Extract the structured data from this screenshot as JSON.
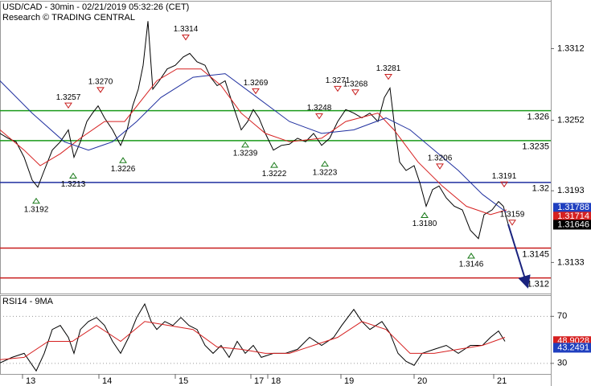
{
  "chart_data": [
    {
      "type": "line",
      "title": "USD/CAD - 30min - 02/21/2019 05:32:26 (CET)",
      "subtitle": "Research © TRADING CENTRAL",
      "xlim": [
        0,
        137
      ],
      "ylim": [
        1.3107,
        1.3352
      ],
      "yticks": [
        1.3312,
        1.3252,
        1.3193,
        1.3133
      ],
      "series": [
        {
          "color": "#000000",
          "x": [
            0,
            2,
            4,
            6,
            8,
            9.4,
            11,
            13,
            15,
            17,
            18.4,
            20,
            21.6,
            23,
            24.4,
            26,
            28,
            30,
            31.6,
            33,
            34.4,
            35.6,
            36.8,
            38,
            39.6,
            41.6,
            43.6,
            45.6,
            47.2,
            49,
            51,
            52.4,
            54,
            56,
            58,
            60,
            61.6,
            63,
            64.4,
            66,
            68,
            70,
            72,
            74,
            76,
            78,
            80,
            82,
            84,
            86,
            88,
            90,
            92,
            94,
            95.6,
            97,
            98,
            99.4,
            101,
            103,
            104.4,
            106,
            107.6,
            109.2,
            111,
            113,
            115,
            117,
            119,
            120.4,
            122.4,
            124,
            125.2,
            126.4
          ],
          "values": [
            1.3241,
            1.3237,
            1.3234,
            1.3221,
            1.3202,
            1.3196,
            1.321,
            1.3227,
            1.3234,
            1.3244,
            1.3221,
            1.3234,
            1.3251,
            1.3258,
            1.3264,
            1.3254,
            1.3244,
            1.3231,
            1.3244,
            1.3264,
            1.3278,
            1.3298,
            1.3335,
            1.3278,
            1.3285,
            1.3295,
            1.3298,
            1.3305,
            1.3308,
            1.3301,
            1.3298,
            1.3288,
            1.3281,
            1.3285,
            1.3264,
            1.3244,
            1.3251,
            1.3261,
            1.3254,
            1.3241,
            1.3227,
            1.3231,
            1.3232,
            1.3237,
            1.3234,
            1.3241,
            1.3231,
            1.3237,
            1.3251,
            1.3261,
            1.3258,
            1.3254,
            1.3258,
            1.3251,
            1.3271,
            1.3279,
            1.3251,
            1.3217,
            1.321,
            1.3214,
            1.32,
            1.318,
            1.3194,
            1.3197,
            1.3187,
            1.318,
            1.3177,
            1.316,
            1.3153,
            1.3173,
            1.3177,
            1.3184,
            1.318,
            1.3165
          ]
        },
        {
          "color": "#d62020",
          "x": [
            0,
            6,
            10,
            15,
            20,
            26,
            31,
            35,
            39,
            44,
            50,
            55,
            60,
            66,
            72,
            80,
            86,
            94,
            98,
            104,
            110,
            116,
            122,
            126
          ],
          "values": [
            1.3244,
            1.3227,
            1.3214,
            1.3224,
            1.3237,
            1.3251,
            1.3251,
            1.3268,
            1.3285,
            1.3295,
            1.3295,
            1.3281,
            1.3258,
            1.3241,
            1.3234,
            1.3237,
            1.3251,
            1.3258,
            1.3244,
            1.3217,
            1.3197,
            1.318,
            1.3173,
            1.3177
          ]
        },
        {
          "color": "#1f2f9f",
          "x": [
            0,
            8,
            16,
            22,
            28,
            34,
            40,
            48,
            56,
            64,
            72,
            80,
            88,
            96,
            102,
            108,
            114,
            120,
            126
          ],
          "values": [
            1.3285,
            1.3258,
            1.3234,
            1.3227,
            1.3234,
            1.3251,
            1.3271,
            1.3288,
            1.3291,
            1.3271,
            1.3251,
            1.3241,
            1.3244,
            1.3254,
            1.3244,
            1.3227,
            1.321,
            1.319,
            1.3175
          ]
        }
      ],
      "forecast": {
        "color": "#1a237e",
        "x": [
          126.4,
          131
        ],
        "values": [
          1.3165,
          1.3115
        ]
      },
      "levels": [
        {
          "value": 1.326,
          "color": "#1a9a1a"
        },
        {
          "value": 1.3235,
          "color": "#1a9a1a"
        },
        {
          "value": 1.32,
          "color": "#1f2f9f"
        },
        {
          "value": 1.3145,
          "color": "#c81e1e"
        },
        {
          "value": 1.312,
          "color": "#c81e1e"
        }
      ],
      "annotations": [
        {
          "x": 46.2,
          "value": 1.3314,
          "kind": "high"
        },
        {
          "x": 17,
          "value": 1.3257,
          "kind": "high"
        },
        {
          "x": 25,
          "value": 1.327,
          "label": "1.3270",
          "kind": "high"
        },
        {
          "x": 63.6,
          "value": 1.3269,
          "kind": "high"
        },
        {
          "x": 84,
          "value": 1.3271,
          "kind": "high"
        },
        {
          "x": 88.4,
          "value": 1.3268,
          "kind": "high"
        },
        {
          "x": 96.6,
          "value": 1.3281,
          "kind": "high"
        },
        {
          "x": 79.4,
          "value": 1.3248,
          "kind": "high"
        },
        {
          "x": 109.4,
          "value": 1.3206,
          "kind": "high"
        },
        {
          "x": 125.4,
          "value": 1.3191,
          "kind": "high"
        },
        {
          "x": 127.4,
          "value": 1.3159,
          "kind": "high"
        },
        {
          "x": 9,
          "value": 1.3192,
          "kind": "low"
        },
        {
          "x": 18.2,
          "value": 1.3213,
          "kind": "low"
        },
        {
          "x": 30.6,
          "value": 1.3226,
          "kind": "low"
        },
        {
          "x": 61,
          "value": 1.3239,
          "kind": "low"
        },
        {
          "x": 68.2,
          "value": 1.3222,
          "kind": "low"
        },
        {
          "x": 80.8,
          "value": 1.3223,
          "kind": "low"
        },
        {
          "x": 105.6,
          "value": 1.318,
          "label": "1.3180",
          "kind": "low"
        },
        {
          "x": 117.2,
          "value": 1.3146,
          "kind": "low"
        }
      ],
      "tags": [
        {
          "value": 1.31788,
          "color": "#1f3fbf"
        },
        {
          "value": 1.31714,
          "color": "#d62020"
        },
        {
          "value": 1.31646,
          "color": "#000000"
        }
      ]
    },
    {
      "type": "line",
      "title": "RSI14 - 9MA",
      "xlim": [
        0,
        137
      ],
      "ylim": [
        21,
        88
      ],
      "yticks": [
        70,
        30
      ],
      "grid": true,
      "xticks": [
        {
          "value": 5.6,
          "label": "13"
        },
        {
          "value": 24.6,
          "label": "14"
        },
        {
          "value": 43.6,
          "label": "15"
        },
        {
          "value": 62.4,
          "label": "17"
        },
        {
          "value": 66.6,
          "label": "18"
        },
        {
          "value": 84.8,
          "label": "19"
        },
        {
          "value": 103,
          "label": "20"
        },
        {
          "value": 122.8,
          "label": "21"
        }
      ],
      "series": [
        {
          "color": "#000000",
          "x": [
            0,
            3,
            6,
            9,
            11,
            13,
            15,
            17,
            18.4,
            20,
            22,
            24,
            26,
            28,
            30,
            32,
            34,
            36,
            37.6,
            39,
            41,
            43,
            45,
            47,
            49,
            51,
            53,
            55,
            57,
            59,
            61,
            63,
            65,
            68,
            71,
            74,
            77,
            80,
            83,
            85,
            88,
            90,
            92,
            95,
            97,
            99,
            101,
            103,
            105,
            108,
            111,
            114,
            117,
            120,
            122,
            124,
            125.6
          ],
          "values": [
            30.4,
            35.1,
            38.5,
            23.6,
            38.5,
            58.8,
            62.2,
            52.1,
            38.5,
            58.8,
            65.6,
            69.0,
            62.2,
            48.7,
            38.5,
            52.1,
            69.0,
            80.5,
            65.6,
            58.8,
            65.6,
            62.2,
            69.0,
            62.2,
            58.8,
            45.3,
            38.5,
            45.3,
            35.1,
            48.7,
            38.5,
            45.3,
            35.1,
            38.5,
            38.5,
            41.9,
            52.1,
            45.3,
            52.1,
            62.2,
            75.8,
            65.6,
            58.8,
            65.6,
            55.5,
            38.5,
            31.7,
            28.3,
            38.5,
            41.9,
            45.3,
            38.5,
            45.3,
            45.3,
            52.1,
            57.5,
            48.7
          ]
        },
        {
          "color": "#d62020",
          "x": [
            0,
            6,
            12,
            18,
            24,
            30,
            36,
            42,
            48,
            54,
            60,
            66,
            72,
            78,
            84,
            90,
            96,
            102,
            108,
            114,
            120,
            125.6
          ],
          "values": [
            33.1,
            35.1,
            48.7,
            48.7,
            62.2,
            48.7,
            65.6,
            62.2,
            58.8,
            43.9,
            41.9,
            38.5,
            38.5,
            45.3,
            52.1,
            65.6,
            58.8,
            38.5,
            38.5,
            41.9,
            45.3,
            52.1
          ]
        }
      ],
      "tags": [
        {
          "value": 48.9028,
          "color": "#d62020"
        },
        {
          "value": 43.2491,
          "color": "#1f3fbf"
        }
      ]
    }
  ]
}
